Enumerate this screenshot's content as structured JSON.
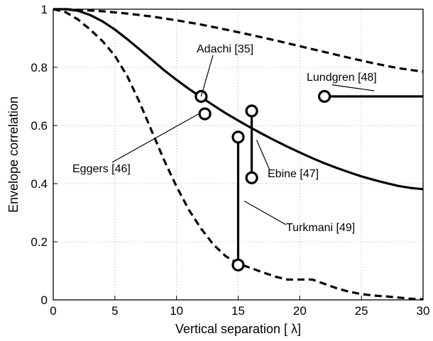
{
  "chart_data": {
    "type": "line",
    "title": "",
    "xlabel": "Vertical separation [ λ]",
    "ylabel": "Envelope correlation",
    "xlim": [
      0,
      30
    ],
    "ylim": [
      0,
      1
    ],
    "xticks": [
      "0",
      "5",
      "10",
      "15",
      "20",
      "25",
      "30"
    ],
    "yticks": [
      "0",
      "0.2",
      "0.4",
      "0.6",
      "0.8",
      "1"
    ],
    "grid": true,
    "series": [
      {
        "style": "dashed",
        "x": [
          0,
          1,
          2,
          4,
          6,
          8,
          10,
          12,
          14,
          16,
          18,
          20,
          22,
          24,
          26,
          28,
          30
        ],
        "values": [
          1,
          1,
          0.998,
          0.993,
          0.985,
          0.975,
          0.962,
          0.947,
          0.93,
          0.912,
          0.893,
          0.873,
          0.853,
          0.833,
          0.814,
          0.797,
          0.785
        ]
      },
      {
        "style": "solid",
        "x": [
          0,
          1,
          2,
          3,
          4,
          5,
          6,
          7,
          8,
          9,
          10,
          11,
          12,
          13,
          14,
          15,
          16,
          17,
          18,
          19,
          20,
          21,
          22,
          23,
          24,
          25,
          26,
          27,
          28,
          29,
          30
        ],
        "values": [
          1,
          1,
          0.995,
          0.98,
          0.958,
          0.93,
          0.897,
          0.862,
          0.826,
          0.79,
          0.757,
          0.726,
          0.697,
          0.669,
          0.642,
          0.617,
          0.593,
          0.57,
          0.548,
          0.527,
          0.507,
          0.488,
          0.47,
          0.454,
          0.439,
          0.425,
          0.413,
          0.402,
          0.392,
          0.385,
          0.381
        ]
      },
      {
        "style": "dashed",
        "x": [
          0,
          1,
          2,
          3,
          4,
          5,
          6,
          7,
          8,
          9,
          10,
          11,
          12,
          13,
          14,
          15,
          16,
          17,
          18,
          19,
          20,
          21,
          22,
          23,
          24,
          25,
          26,
          27,
          28,
          29,
          30
        ],
        "values": [
          1,
          0.99,
          0.965,
          0.93,
          0.89,
          0.84,
          0.77,
          0.68,
          0.58,
          0.48,
          0.39,
          0.31,
          0.245,
          0.19,
          0.15,
          0.125,
          0.11,
          0.095,
          0.08,
          0.07,
          0.07,
          0.07,
          0.055,
          0.04,
          0.028,
          0.02,
          0.015,
          0.012,
          0.008,
          0.004,
          0.002
        ]
      }
    ],
    "measurements": [
      {
        "name": "Adachi [35]",
        "x": 12,
        "points": [
          0.7
        ]
      },
      {
        "name": "Eggers [46]",
        "x": 12.3,
        "points": [
          0.64
        ]
      },
      {
        "name": "Ebine [47]",
        "x": 16.1,
        "points": [
          0.65,
          0.42
        ]
      },
      {
        "name": "Turkmani [49]",
        "x": 15,
        "points": [
          0.56,
          0.12
        ]
      },
      {
        "name": "Lundgren [48]",
        "x": 22,
        "points": [
          0.7
        ],
        "segment_to_x": 30
      }
    ],
    "annotations": [
      {
        "text": "Adachi [35]"
      },
      {
        "text": "Lundgren [48]"
      },
      {
        "text": "Eggers [46]"
      },
      {
        "text": "Ebine [47]"
      },
      {
        "text": "Turkmani [49]"
      }
    ]
  }
}
